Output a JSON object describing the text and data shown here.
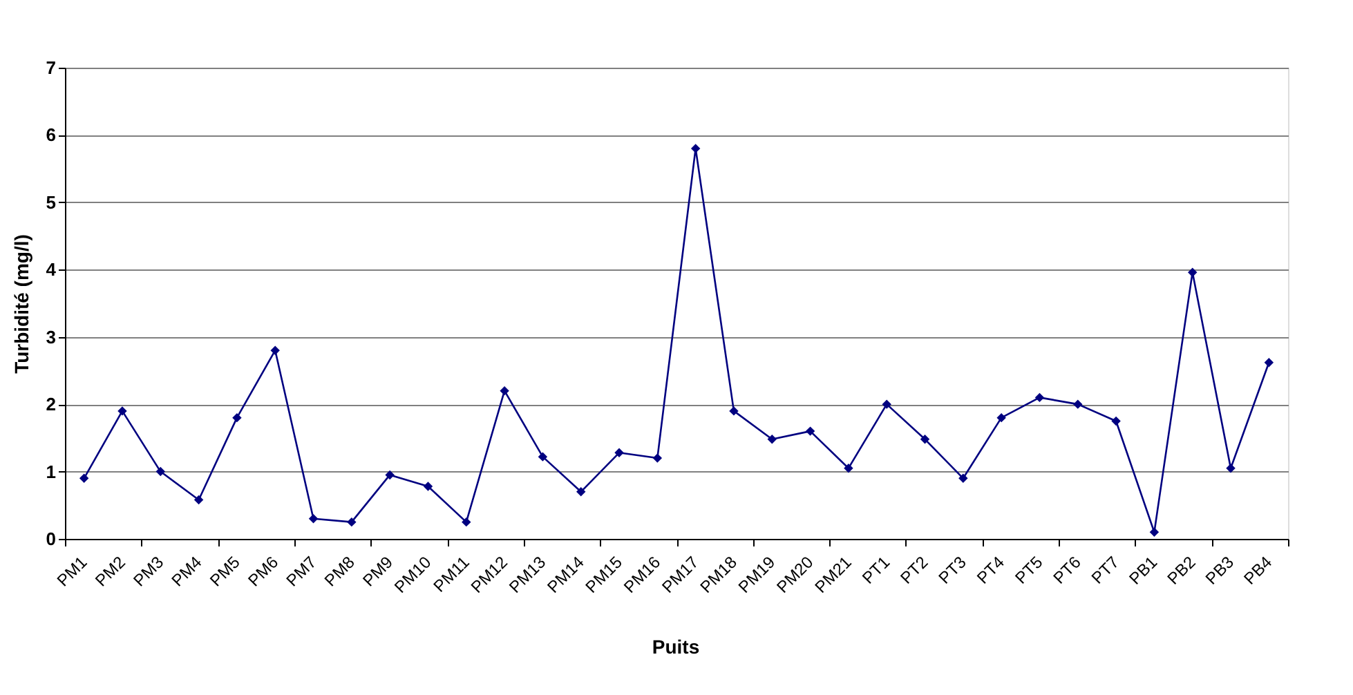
{
  "chart_data": {
    "type": "line",
    "xlabel": "Puits",
    "ylabel": "Turbidité (mg/l)",
    "categories": [
      "PM1",
      "PM2",
      "PM3",
      "PM4",
      "PM5",
      "PM6",
      "PM7",
      "PM8",
      "PM9",
      "PM10",
      "PM11",
      "PM12",
      "PM13",
      "PM14",
      "PM15",
      "PM16",
      "PM17",
      "PM18",
      "PM19",
      "PM20",
      "PM21",
      "PT1",
      "PT2",
      "PT3",
      "PT4",
      "PT5",
      "PT6",
      "PT7",
      "PB1",
      "PB2",
      "PB3",
      "PB4"
    ],
    "series": [
      {
        "color": "#000080",
        "values": [
          0.9,
          1.9,
          1.0,
          0.58,
          1.8,
          2.8,
          0.3,
          0.25,
          0.95,
          0.78,
          0.25,
          2.2,
          1.22,
          0.7,
          1.28,
          1.2,
          5.8,
          1.9,
          1.48,
          1.6,
          1.05,
          2.0,
          1.48,
          0.9,
          1.8,
          2.1,
          2.0,
          1.75,
          0.1,
          3.96,
          1.05,
          2.62
        ]
      }
    ],
    "ylim": [
      0,
      7
    ],
    "yticks": [
      0,
      1,
      2,
      3,
      4,
      5,
      6,
      7
    ],
    "grid": "y",
    "marker": "diamond",
    "line_style": "solid"
  }
}
